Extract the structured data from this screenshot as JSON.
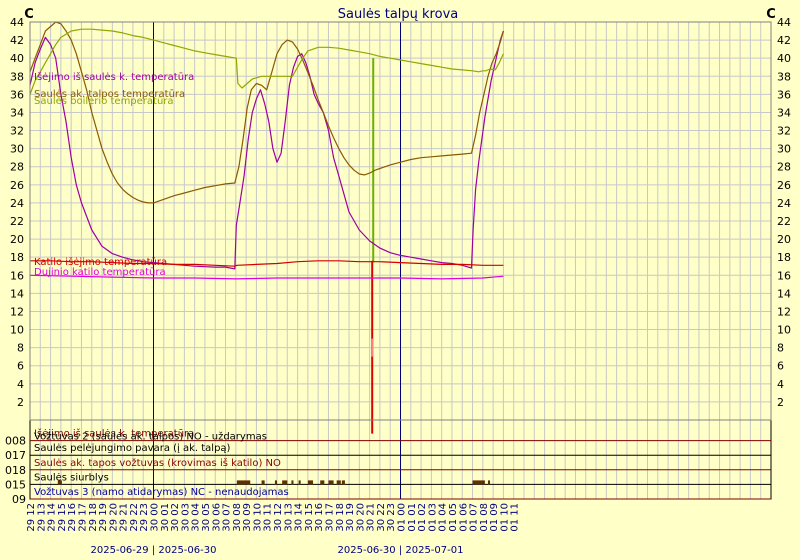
{
  "chart_data": {
    "type": "line",
    "title": "Saulės talpų krova",
    "left_unit": "C",
    "right_unit": "C",
    "ylim": [
      0,
      44
    ],
    "y_ticks": [
      2,
      4,
      6,
      8,
      10,
      12,
      14,
      16,
      18,
      20,
      22,
      24,
      26,
      28,
      30,
      32,
      34,
      36,
      38,
      40,
      42,
      44
    ],
    "x_range": [
      12,
      84
    ],
    "x_tick_labels": [
      "29 12",
      "29 13",
      "29 14",
      "29 15",
      "29 16",
      "29 17",
      "29 18",
      "29 19",
      "29 20",
      "29 21",
      "29 22",
      "29 23",
      "30 00",
      "30 01",
      "30 02",
      "30 03",
      "30 04",
      "30 05",
      "30 06",
      "30 07",
      "30 08",
      "30 09",
      "30 10",
      "30 11",
      "30 12",
      "30 13",
      "30 14",
      "30 15",
      "30 16",
      "30 17",
      "30 18",
      "30 19",
      "30 20",
      "30 21",
      "30 22",
      "30 23",
      "01 00",
      "01 01",
      "01 02",
      "01 03",
      "01 04",
      "01 05",
      "01 06",
      "01 07",
      "01 08",
      "01 09",
      "01 10",
      "01 11"
    ],
    "date_labels": [
      {
        "at": 24,
        "text": "2025-06-29  |  2025-06-30"
      },
      {
        "at": 48,
        "text": "2025-06-30  |  2025-07-01"
      }
    ],
    "day_boundaries": [
      24,
      48
    ],
    "series": [
      {
        "name": "Išėjimo iš saulės k. temperatūra",
        "color": "#a000a0",
        "x": [
          12,
          12.5,
          13,
          13.5,
          14,
          14.5,
          15,
          15.5,
          16,
          16.5,
          17,
          18,
          19,
          20,
          21,
          22,
          23,
          24,
          25,
          26,
          27,
          28,
          29,
          30,
          31,
          31.9,
          32.05,
          32.4,
          32.8,
          33.2,
          33.6,
          34,
          34.4,
          34.8,
          35.2,
          35.6,
          36,
          36.4,
          36.8,
          37.2,
          37.6,
          38,
          38.4,
          38.8,
          39.2,
          39.6,
          40,
          40.5,
          41,
          41.5,
          42,
          42.5,
          43,
          44,
          45,
          46,
          47,
          48,
          49,
          50,
          51,
          52,
          53,
          54,
          54.9,
          55.05,
          55.3,
          55.6,
          55.9,
          56.2,
          56.5,
          56.8,
          57.1,
          57.4,
          57.7,
          58
        ],
        "y": [
          37,
          39.5,
          41,
          42.3,
          41.5,
          40,
          36,
          33,
          29,
          26,
          24,
          21,
          19.2,
          18.4,
          18,
          17.7,
          17.5,
          17.4,
          17.3,
          17.2,
          17.1,
          17,
          16.95,
          16.9,
          16.9,
          16.7,
          21.5,
          24,
          27,
          31,
          34,
          35.5,
          36.5,
          35,
          33,
          30,
          28.5,
          29.5,
          33,
          37,
          39,
          40.2,
          40.5,
          39.5,
          38,
          36,
          35,
          34,
          32,
          29,
          27,
          25,
          23,
          21,
          19.8,
          19,
          18.5,
          18.2,
          18,
          17.8,
          17.6,
          17.4,
          17.3,
          17.1,
          16.8,
          21,
          25.5,
          28.5,
          31,
          33.5,
          35.5,
          37.5,
          39,
          40.5,
          42,
          43
        ]
      },
      {
        "name": "Saulės ak. talpos temperatūra",
        "color": "#8b5a00",
        "x": [
          12,
          12.5,
          13,
          13.5,
          14,
          14.5,
          15,
          15.5,
          16,
          16.5,
          17,
          17.5,
          18,
          18.5,
          19,
          19.5,
          20,
          20.5,
          21,
          21.5,
          22,
          22.5,
          23,
          23.5,
          24,
          25,
          26,
          27,
          28,
          29,
          30,
          31,
          31.9,
          32.3,
          32.7,
          33.1,
          33.5,
          34,
          34.5,
          35,
          35.5,
          36,
          36.5,
          37,
          37.5,
          38,
          38.5,
          39,
          39.5,
          40,
          40.5,
          41,
          41.5,
          42,
          42.5,
          43,
          43.5,
          44,
          44.5,
          45,
          45.5,
          46,
          47,
          48,
          49,
          50,
          51,
          52,
          53,
          54,
          54.9,
          55.3,
          55.7,
          56.1,
          56.5,
          56.9,
          57.3,
          57.7,
          58
        ],
        "y": [
          38.5,
          40,
          41.5,
          43,
          43.5,
          44,
          43.8,
          43,
          42,
          40.5,
          38.5,
          36.5,
          34,
          32,
          30,
          28.5,
          27.2,
          26.2,
          25.5,
          25,
          24.6,
          24.3,
          24.1,
          24,
          24,
          24.4,
          24.8,
          25.1,
          25.4,
          25.7,
          25.9,
          26.1,
          26.2,
          28,
          31,
          34.5,
          36.5,
          37.2,
          37,
          36.5,
          38.5,
          40.5,
          41.5,
          42,
          41.8,
          41,
          39.8,
          38.4,
          37,
          35.4,
          34,
          32.5,
          31.2,
          30,
          29,
          28.2,
          27.6,
          27.2,
          27.1,
          27.3,
          27.6,
          27.8,
          28.2,
          28.5,
          28.8,
          29,
          29.1,
          29.2,
          29.3,
          29.4,
          29.5,
          31.5,
          34,
          36,
          38,
          39.5,
          40.5,
          41.8,
          43
        ]
      },
      {
        "name": "Saulės boilerio temperatūra",
        "color": "#90a800",
        "x": [
          12,
          12.5,
          13,
          13.5,
          14,
          14.5,
          15,
          16,
          17,
          18,
          19,
          20,
          21,
          22,
          23,
          24,
          25,
          26,
          27,
          28,
          29,
          30,
          31,
          32.05,
          32.2,
          32.6,
          33.1,
          33.6,
          34.5,
          35.5,
          36.5,
          37.5,
          38,
          38.5,
          39,
          40,
          41,
          42,
          43,
          44,
          45,
          46,
          47,
          48,
          49,
          50,
          51,
          52,
          53,
          54,
          55,
          55.6,
          56,
          56.3,
          56.7,
          57.2,
          57.6,
          58
        ],
        "y": [
          36,
          37.5,
          38.5,
          39.5,
          40.5,
          41.5,
          42.3,
          43,
          43.2,
          43.2,
          43.1,
          43,
          42.8,
          42.5,
          42.3,
          42,
          41.7,
          41.4,
          41.1,
          40.8,
          40.6,
          40.4,
          40.2,
          40,
          37.2,
          36.7,
          37.2,
          37.7,
          38,
          38,
          38,
          38,
          39,
          40,
          40.8,
          41.2,
          41.2,
          41.1,
          40.9,
          40.7,
          40.5,
          40.2,
          40,
          39.8,
          39.6,
          39.4,
          39.2,
          39,
          38.8,
          38.7,
          38.6,
          38.5,
          38.6,
          38.6,
          38.8,
          38.7,
          39.5,
          40.5
        ]
      },
      {
        "name": "Katilo išėjimo temperatūra",
        "color": "#d40000",
        "x": [
          12,
          14,
          16,
          18,
          20,
          22,
          24,
          26,
          28,
          30,
          31.9,
          32.1,
          34,
          36,
          38,
          40,
          42,
          44,
          46,
          48,
          50,
          52,
          54,
          56,
          58
        ],
        "y": [
          17.6,
          17.6,
          17.5,
          17.5,
          17.4,
          17.3,
          17.3,
          17.2,
          17.2,
          17.1,
          17.0,
          17.1,
          17.2,
          17.3,
          17.5,
          17.6,
          17.6,
          17.5,
          17.5,
          17.4,
          17.3,
          17.2,
          17.2,
          17.1,
          17.1
        ]
      },
      {
        "name": "Dujinio katilo temperatūra",
        "color": "#e000e0",
        "x": [
          12,
          16,
          20,
          24,
          28,
          32,
          36,
          40,
          44,
          48,
          52,
          56,
          58
        ],
        "y": [
          16.0,
          15.9,
          15.8,
          15.7,
          15.7,
          15.6,
          15.7,
          15.7,
          15.7,
          15.7,
          15.6,
          15.7,
          15.9
        ]
      }
    ],
    "legend_labels": [
      {
        "text": "Išėjimo iš saulės k. temperatūra",
        "color": "#a000a0"
      },
      {
        "text": "Saulės ak. talpos temperatūra",
        "color": "#8b5a00"
      },
      {
        "text": "Saulės boilerio temperatūra",
        "color": "#90a800"
      },
      {
        "text": "Katilo išėjimo temperatūra",
        "color": "#d40000"
      },
      {
        "text": "Dujinio katilo temperatūra",
        "color": "#e000e0"
      }
    ],
    "events": [
      {
        "x": 45.35,
        "color": "#6ab000",
        "from": 40,
        "to": 17.4
      },
      {
        "x": 45.25,
        "color": "#e00000",
        "from": 17.6,
        "to": -1.5
      },
      {
        "x": 45.25,
        "color": "#ff8080",
        "from": 9,
        "to": 7
      }
    ],
    "digital_tracks": [
      {
        "tick": "008",
        "label": "Išėjimo iš saulės k. temperatūra",
        "label2": "Vožtuvas 2 (saulės ak. talpos) NO - uždarymas",
        "color": "#8b0000",
        "label2_color": "#000000",
        "active": []
      },
      {
        "tick": "017",
        "label": "Saulės pelėjungimo pavara (į ak. talpą)",
        "color": "#000000",
        "active": []
      },
      {
        "tick": "018",
        "label": "Saulės ak. tapos vožtuvas (krovimas iš katilo) NO",
        "color": "#8b0000",
        "active": []
      },
      {
        "tick": "015",
        "label": "Saulės siurblys",
        "color": "#000000",
        "active": [
          [
            14.7,
            15.1
          ],
          [
            32.1,
            33.4
          ],
          [
            34.5,
            34.8
          ],
          [
            35.8,
            36.0
          ],
          [
            36.5,
            37.0
          ],
          [
            37.4,
            37.6
          ],
          [
            38.1,
            38.3
          ],
          [
            39.0,
            39.5
          ],
          [
            40.2,
            40.6
          ],
          [
            41.0,
            41.5
          ],
          [
            41.8,
            42.2
          ],
          [
            42.3,
            42.6
          ],
          [
            55.0,
            56.2
          ],
          [
            56.5,
            56.7
          ]
        ]
      },
      {
        "tick": "09",
        "label": "Vožtuvas 3 (namo atidarymas) NC - nenaudojamas",
        "color": "#0000a0",
        "active": []
      }
    ],
    "grid": true
  }
}
